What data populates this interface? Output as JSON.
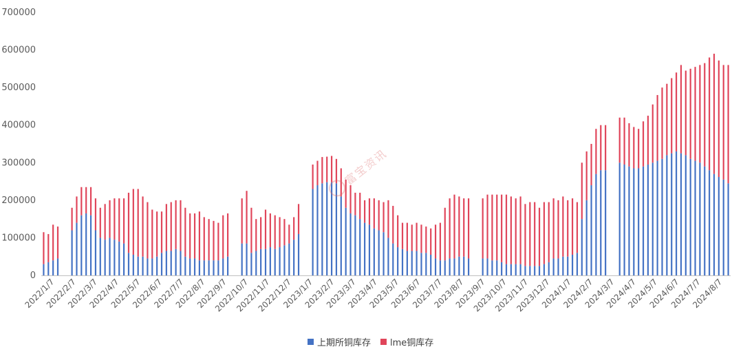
{
  "colors": {
    "shfe": "#4472C4",
    "lme": "#E0455A",
    "axis": "#BFBFBF",
    "text": "#595959"
  },
  "watermark": {
    "text": "富宝资讯"
  },
  "chart_data": {
    "type": "bar",
    "stacked": true,
    "title": "",
    "xlabel": "",
    "ylabel": "",
    "ylim": [
      0,
      700000
    ],
    "yticks": [
      0,
      100000,
      200000,
      300000,
      400000,
      500000,
      600000,
      700000
    ],
    "legend_position": "bottom",
    "x_tick_labels": [
      "2022/1/7",
      "2022/2/7",
      "2022/3/7",
      "2022/4/7",
      "2022/5/7",
      "2022/6/7",
      "2022/7/7",
      "2022/8/7",
      "2022/9/7",
      "2022/10/7",
      "2022/11/7",
      "2022/12/7",
      "2023/1/7",
      "2023/2/7",
      "2023/3/7",
      "2023/4/7",
      "2023/5/7",
      "2023/6/7",
      "2023/7/7",
      "2023/8/7",
      "2023/9/7",
      "2023/10/7",
      "2023/11/7",
      "2023/12/7",
      "2024/1/7",
      "2024/2/7",
      "2024/3/7",
      "2024/4/7",
      "2024/5/7",
      "2024/6/7",
      "2024/7/7",
      "2024/8/7"
    ],
    "series": [
      {
        "name": "上期所铜库存",
        "color": "#4472C4",
        "values": [
          30000,
          35000,
          40000,
          45000,
          0,
          0,
          120000,
          140000,
          160000,
          165000,
          160000,
          120000,
          100000,
          95000,
          100000,
          95000,
          90000,
          85000,
          60000,
          55000,
          50000,
          50000,
          45000,
          45000,
          50000,
          60000,
          65000,
          65000,
          70000,
          65000,
          50000,
          45000,
          45000,
          40000,
          40000,
          40000,
          40000,
          40000,
          45000,
          50000,
          0,
          0,
          85000,
          85000,
          60000,
          65000,
          70000,
          70000,
          75000,
          70000,
          75000,
          80000,
          85000,
          95000,
          110000,
          0,
          0,
          230000,
          240000,
          245000,
          248000,
          248000,
          245000,
          210000,
          180000,
          165000,
          160000,
          150000,
          140000,
          135000,
          125000,
          120000,
          115000,
          100000,
          85000,
          75000,
          70000,
          65000,
          65000,
          65000,
          60000,
          60000,
          55000,
          45000,
          40000,
          40000,
          45000,
          45000,
          50000,
          50000,
          45000,
          0,
          0,
          45000,
          45000,
          40000,
          40000,
          35000,
          30000,
          30000,
          30000,
          30000,
          25000,
          25000,
          25000,
          25000,
          30000,
          35000,
          45000,
          45000,
          50000,
          50000,
          55000,
          60000,
          150000,
          200000,
          240000,
          270000,
          280000,
          280000,
          0,
          0,
          300000,
          295000,
          290000,
          285000,
          285000,
          290000,
          295000,
          300000,
          305000,
          310000,
          320000,
          325000,
          330000,
          325000,
          320000,
          310000,
          305000,
          300000,
          290000,
          280000,
          270000,
          262000,
          255000,
          245000
        ]
      },
      {
        "name": "lme铜库存",
        "color": "#E0455A",
        "values": [
          85000,
          75000,
          95000,
          85000,
          0,
          0,
          60000,
          70000,
          75000,
          70000,
          75000,
          85000,
          80000,
          95000,
          100000,
          110000,
          115000,
          120000,
          160000,
          175000,
          180000,
          160000,
          150000,
          130000,
          120000,
          110000,
          125000,
          130000,
          130000,
          135000,
          130000,
          120000,
          120000,
          130000,
          115000,
          110000,
          105000,
          100000,
          115000,
          115000,
          0,
          0,
          120000,
          140000,
          120000,
          85000,
          85000,
          105000,
          90000,
          90000,
          80000,
          70000,
          50000,
          60000,
          80000,
          0,
          0,
          65000,
          65000,
          70000,
          68000,
          70000,
          65000,
          75000,
          75000,
          75000,
          60000,
          70000,
          60000,
          70000,
          80000,
          80000,
          80000,
          100000,
          100000,
          85000,
          70000,
          75000,
          70000,
          75000,
          75000,
          70000,
          70000,
          90000,
          100000,
          140000,
          160000,
          170000,
          160000,
          155000,
          160000,
          0,
          0,
          160000,
          170000,
          175000,
          175000,
          180000,
          185000,
          180000,
          175000,
          180000,
          165000,
          170000,
          170000,
          155000,
          165000,
          160000,
          160000,
          155000,
          160000,
          150000,
          150000,
          135000,
          150000,
          130000,
          110000,
          120000,
          120000,
          120000,
          0,
          0,
          120000,
          125000,
          115000,
          110000,
          105000,
          120000,
          130000,
          155000,
          175000,
          190000,
          190000,
          200000,
          210000,
          235000,
          225000,
          240000,
          250000,
          260000,
          275000,
          300000,
          320000,
          310000,
          305000,
          315000
        ]
      }
    ]
  }
}
